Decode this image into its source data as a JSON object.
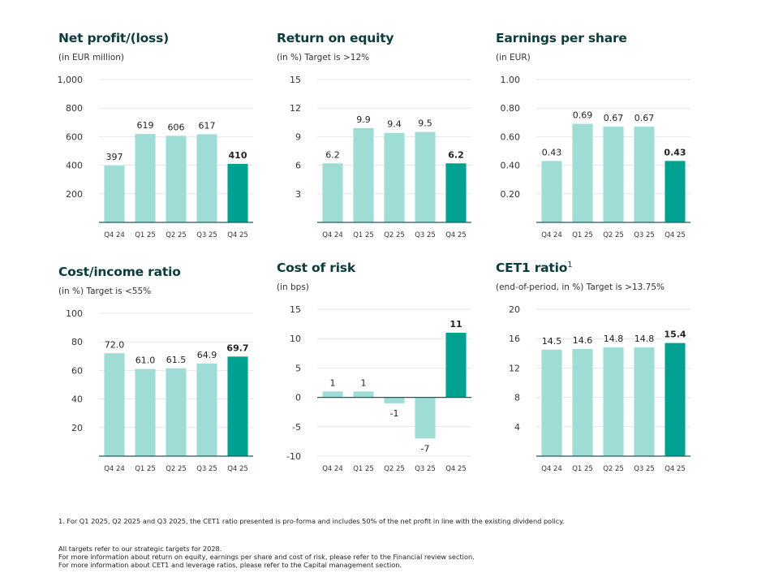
{
  "colors": {
    "light": "#9fdcd5",
    "dark": "#00a191",
    "axis": "#1e5b5b",
    "grid": "#e6e6e6",
    "text": "#333333"
  },
  "chart_data": [
    {
      "id": "net-profit",
      "type": "bar",
      "title": "Net profit/(loss)",
      "subtitle": "(in EUR million)",
      "categories": [
        "Q4 24",
        "Q1 25",
        "Q2 25",
        "Q3 25",
        "Q4 25"
      ],
      "values": [
        397,
        619,
        606,
        617,
        410
      ],
      "labels": [
        "397",
        "619",
        "606",
        "617",
        "410"
      ],
      "yticks": [
        200,
        400,
        600,
        800,
        1000
      ],
      "ytick_labels": [
        "200",
        "400",
        "600",
        "800",
        "1,000"
      ],
      "ylim": [
        0,
        1000
      ],
      "grid": true,
      "highlight_index": 4
    },
    {
      "id": "return-on-equity",
      "type": "bar",
      "title": "Return on equity",
      "subtitle": "(in %) Target is >12%",
      "categories": [
        "Q4 24",
        "Q1 25",
        "Q2 25",
        "Q3 25",
        "Q4 25"
      ],
      "values": [
        6.2,
        9.9,
        9.4,
        9.5,
        6.2
      ],
      "labels": [
        "6.2",
        "9.9",
        "9.4",
        "9.5",
        "6.2"
      ],
      "yticks": [
        3,
        6,
        9,
        12,
        15
      ],
      "ytick_labels": [
        "3",
        "6",
        "9",
        "12",
        "15"
      ],
      "ylim": [
        0,
        15
      ],
      "grid": true,
      "highlight_index": 4
    },
    {
      "id": "earnings-per-share",
      "type": "bar",
      "title": "Earnings per share",
      "subtitle": "(in EUR)",
      "categories": [
        "Q4 24",
        "Q1 25",
        "Q2 25",
        "Q3 25",
        "Q4 25"
      ],
      "values": [
        0.43,
        0.69,
        0.67,
        0.67,
        0.43
      ],
      "labels": [
        "0.43",
        "0.69",
        "0.67",
        "0.67",
        "0.43"
      ],
      "yticks": [
        0.2,
        0.4,
        0.6,
        0.8,
        1.0
      ],
      "ytick_labels": [
        "0.20",
        "0.40",
        "0.60",
        "0.80",
        "1.00"
      ],
      "ylim": [
        0,
        1.0
      ],
      "grid": true,
      "highlight_index": 4
    },
    {
      "id": "cost-income-ratio",
      "type": "bar",
      "title": "Cost/income ratio",
      "subtitle": "(in %) Target is <55%",
      "categories": [
        "Q4 24",
        "Q1 25",
        "Q2 25",
        "Q3 25",
        "Q4 25"
      ],
      "values": [
        72.0,
        61.0,
        61.5,
        64.9,
        69.7
      ],
      "labels": [
        "72.0",
        "61.0",
        "61.5",
        "64.9",
        "69.7"
      ],
      "yticks": [
        20,
        40,
        60,
        80,
        100
      ],
      "ytick_labels": [
        "20",
        "40",
        "60",
        "80",
        "100"
      ],
      "ylim": [
        0,
        100
      ],
      "grid": true,
      "highlight_index": 4
    },
    {
      "id": "cost-of-risk",
      "type": "bar",
      "title": "Cost of risk",
      "subtitle": "(in bps)",
      "categories": [
        "Q4 24",
        "Q1 25",
        "Q2 25",
        "Q3 25",
        "Q4 25"
      ],
      "values": [
        1,
        1,
        -1,
        -7,
        11
      ],
      "labels": [
        "1",
        "1",
        "-1",
        "-7",
        "11"
      ],
      "yticks": [
        -10,
        -5,
        0,
        5,
        10,
        15
      ],
      "ytick_labels": [
        "-10",
        "-5",
        "0",
        "5",
        "10",
        "15"
      ],
      "ylim": [
        -10,
        15
      ],
      "grid": true,
      "highlight_index": 4
    },
    {
      "id": "cet1-ratio",
      "type": "bar",
      "title": "CET1 ratio",
      "title_sup": "1",
      "subtitle": "(end-of-period, in %) Target is >13.75%",
      "categories": [
        "Q4 24",
        "Q1 25",
        "Q2 25",
        "Q3 25",
        "Q4 25"
      ],
      "values": [
        14.5,
        14.6,
        14.8,
        14.8,
        15.4
      ],
      "labels": [
        "14.5",
        "14.6",
        "14.8",
        "14.8",
        "15.4"
      ],
      "yticks": [
        4,
        8,
        12,
        16,
        20
      ],
      "ytick_labels": [
        "4",
        "8",
        "12",
        "16",
        "20"
      ],
      "ylim": [
        0,
        20
      ],
      "grid": true,
      "highlight_index": 4
    }
  ],
  "footnotes": {
    "note1": "1. For Q1 2025, Q2 2025 and Q3 2025, the CET1 ratio presented is pro-forma and includes 50% of the net profit in line with the existing dividend policy.",
    "targets": "All targets refer to our strategic targets for 2028.",
    "info1": "For more information about return on equity, earnings per share and cost of risk, please refer to the Financial review section.",
    "info2": "For more information about CET1 and leverage ratios, please refer to the Capital management section."
  }
}
